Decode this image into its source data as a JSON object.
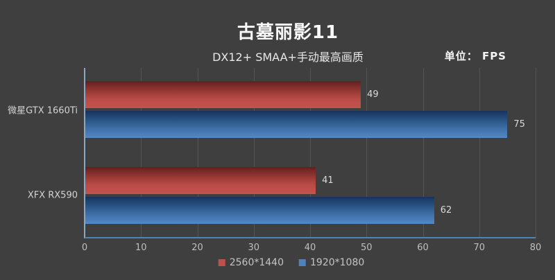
{
  "title": "古墓丽影11",
  "subtitle": "DX12+ SMAA+手动最高画质",
  "unit_label": "单位：  FPS",
  "colors": {
    "background": "#3F3F3F",
    "red_series": "#C0504D",
    "blue_series": "#4F81BD",
    "baseline": "#4F81BD",
    "axis_line": "#8BA7C2",
    "gridline": "#545454",
    "text_light": "#D9D9D9"
  },
  "chart_data": {
    "type": "bar",
    "orientation": "horizontal",
    "title": "古墓丽影11",
    "subtitle": "DX12+ SMAA+手动最高画质",
    "unit": "FPS",
    "categories": [
      "微星GTX 1660Ti",
      "XFX RX590"
    ],
    "series": [
      {
        "name": "2560*1440",
        "color": "#C0504D",
        "values": [
          49,
          41
        ]
      },
      {
        "name": "1920*1080",
        "color": "#4F81BD",
        "values": [
          75,
          62
        ]
      }
    ],
    "xlim": [
      0,
      80
    ],
    "xticks": [
      0,
      10,
      20,
      30,
      40,
      50,
      60,
      70,
      80
    ],
    "grid": true,
    "legend_position": "bottom"
  }
}
